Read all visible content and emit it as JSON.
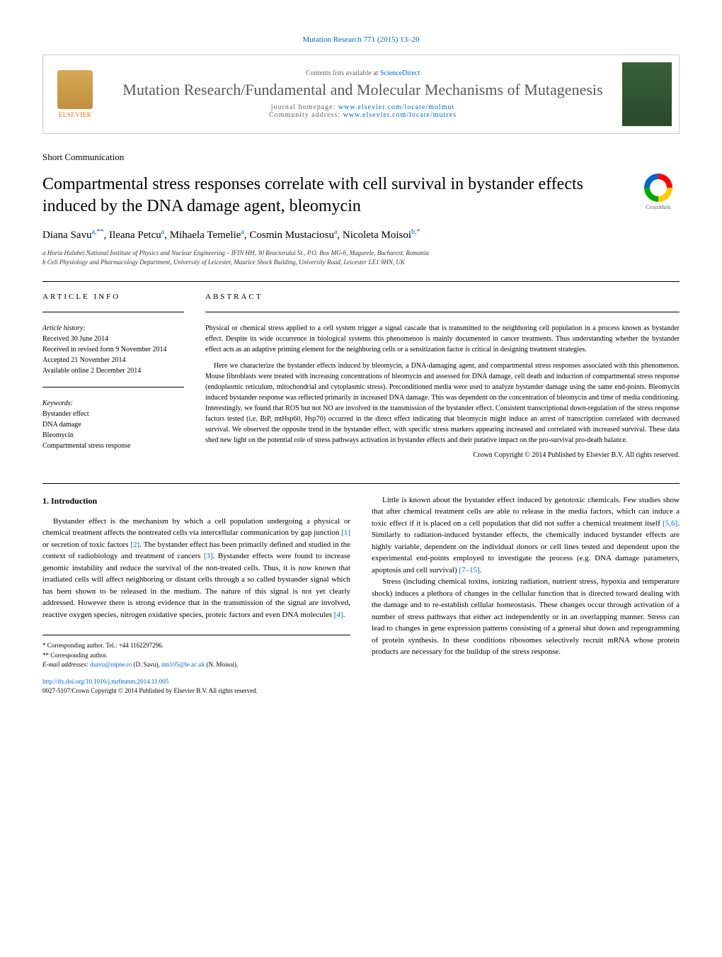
{
  "header": {
    "citation": "Mutation Research 771 (2015) 13–20",
    "contents_prefix": "Contents lists available at ",
    "contents_link": "ScienceDirect",
    "journal_name": "Mutation Research/Fundamental and Molecular Mechanisms of Mutagenesis",
    "homepage_label": "journal homepage: ",
    "homepage_url": "www.elsevier.com/locate/molmut",
    "community_label": "Community address: ",
    "community_url": "www.elsevier.com/locate/mutres",
    "publisher": "ELSEVIER"
  },
  "article": {
    "type": "Short Communication",
    "title": "Compartmental stress responses correlate with cell survival in bystander effects induced by the DNA damage agent, bleomycin",
    "crossmark": "CrossMark",
    "authors_html": "Diana Savu",
    "author_list": [
      {
        "name": "Diana Savu",
        "sup": "a,**"
      },
      {
        "name": "Ileana Petcu",
        "sup": "a"
      },
      {
        "name": "Mihaela Temelie",
        "sup": "a"
      },
      {
        "name": "Cosmin Mustaciosu",
        "sup": "a"
      },
      {
        "name": "Nicoleta Moisoi",
        "sup": "b,*"
      }
    ],
    "affiliations": [
      "a Horia Hulubei National Institute of Physics and Nuclear Engineering – IFIN HH, 30 Reactorului St., P.O. Box MG-6, Magurele, Bucharest, Romania",
      "b Cell Physiology and Pharmacology Department, University of Leicester, Maurice Shock Building, University Road, Leicester LE1 9HN, UK"
    ]
  },
  "info": {
    "heading": "article info",
    "history_label": "Article history:",
    "history": [
      "Received 30 June 2014",
      "Received in revised form 9 November 2014",
      "Accepted 21 November 2014",
      "Available online 2 December 2014"
    ],
    "keywords_label": "Keywords:",
    "keywords": [
      "Bystander effect",
      "DNA damage",
      "Bleomycin",
      "Compartmental stress response"
    ]
  },
  "abstract": {
    "heading": "abstract",
    "paragraphs": [
      "Physical or chemical stress applied to a cell system trigger a signal cascade that is transmitted to the neighboring cell population in a process known as bystander effect. Despite its wide occurrence in biological systems this phenomenon is mainly documented in cancer treatments. Thus understanding whether the bystander effect acts as an adaptive priming element for the neighboring cells or a sensitization factor is critical in designing treatment strategies.",
      "Here we characterize the bystander effects induced by bleomycin, a DNA-damaging agent, and compartmental stress responses associated with this phenomenon. Mouse fibroblasts were treated with increasing concentrations of bleomycin and assessed for DNA damage, cell death and induction of compartmental stress response (endoplasmic reticulum, mitochondrial and cytoplasmic stress). Preconditioned media were used to analyze bystander damage using the same end-points. Bleomycin induced bystander response was reflected primarily in increased DNA damage. This was dependent on the concentration of bleomycin and time of media conditioning. Interestingly, we found that ROS but not NO are involved in the transmission of the bystander effect. Consistent transcriptional down-regulation of the stress response factors tested (i.e. BiP, mtHsp60, Hsp70) occurred in the direct effect indicating that bleomycin might induce an arrest of transcription correlated with decreased survival. We observed the opposite trend in the bystander effect, with specific stress markers appearing increased and correlated with increased survival. These data shed new light on the potential role of stress pathways activation in bystander effects and their putative impact on the pro-survival pro-death balance."
    ],
    "copyright": "Crown Copyright © 2014 Published by Elsevier B.V. All rights reserved."
  },
  "body": {
    "section_heading": "1. Introduction",
    "left_paragraphs": [
      "Bystander effect is the mechanism by which a cell population undergoing a physical or chemical treatment affects the nontreated cells via intercellular communication by gap junction [1] or secretion of toxic factors [2]. The bystander effect has been primarily defined and studied in the context of radiobiology and treatment of cancers [3]. Bystander effects were found to increase genomic instability and reduce the survival of the non-treated cells. Thus, it is now known that irradiated cells will affect neighboring or distant cells through a so called bystander signal which has been shown to be released in the medium. The nature of this signal is not yet clearly addressed. However there is strong evidence that in the transmission of the signal are involved, reactive oxygen species, nitrogen oxidative species, proteic factors and even DNA molecules [4]."
    ],
    "right_paragraphs": [
      "Little is known about the bystander effect induced by genotoxic chemicals. Few studies show that after chemical treatment cells are able to release in the media factors, which can induce a toxic effect if it is placed on a cell population that did not suffer a chemical treatment itself [5,6]. Similarly to radiation-induced bystander effects, the chemically induced bystander effects are highly variable, dependent on the individual donors or cell lines tested and dependent upon the experimental end-points employed to investigate the process (e.g. DNA damage parameters, apoptosis and cell survival) [7–15].",
      "Stress (including chemical toxins, ionizing radiation, nutrient stress, hypoxia and temperature shock) induces a plethora of changes in the cellular function that is directed toward dealing with the damage and to re-establish cellular homeostasis. These changes occur through activation of a number of stress pathways that either act independently or in an overlapping manner. Stress can lead to changes in gene expression patterns consisting of a general shut down and reprogramming of protein synthesis. In these conditions ribosomes selectively recruit mRNA whose protein products are necessary for the buildup of the stress response."
    ]
  },
  "footnotes": {
    "corr1": "* Corresponding author. Tel.: +44 1162297296.",
    "corr2": "** Corresponding author.",
    "email_label": "E-mail addresses: ",
    "email1": "dsavu@nipne.ro",
    "email1_name": " (D. Savu), ",
    "email2": "nm105@le.ac.uk",
    "email2_name": " (N. Moisoi)."
  },
  "footer": {
    "doi": "http://dx.doi.org/10.1016/j.mrfmmm.2014.11.005",
    "issn_line": "0027-5107/Crown Copyright © 2014 Published by Elsevier B.V. All rights reserved."
  },
  "colors": {
    "link": "#0066cc",
    "text": "#000000",
    "elsevier_orange": "#ff6600"
  }
}
